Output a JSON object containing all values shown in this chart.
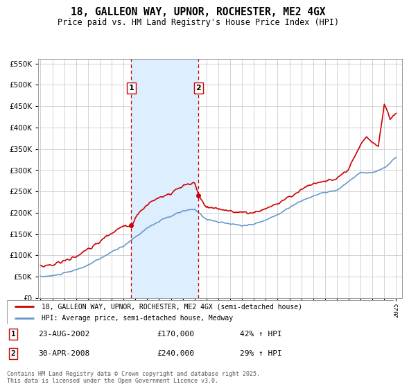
{
  "title": "18, GALLEON WAY, UPNOR, ROCHESTER, ME2 4GX",
  "subtitle": "Price paid vs. HM Land Registry's House Price Index (HPI)",
  "title_fontsize": 10.5,
  "subtitle_fontsize": 8.5,
  "legend_line1": "18, GALLEON WAY, UPNOR, ROCHESTER, ME2 4GX (semi-detached house)",
  "legend_line2": "HPI: Average price, semi-detached house, Medway",
  "annotation1_label": "1",
  "annotation1_date": "23-AUG-2002",
  "annotation1_price": "£170,000",
  "annotation1_hpi": "42% ↑ HPI",
  "annotation2_label": "2",
  "annotation2_date": "30-APR-2008",
  "annotation2_price": "£240,000",
  "annotation2_hpi": "29% ↑ HPI",
  "footer": "Contains HM Land Registry data © Crown copyright and database right 2025.\nThis data is licensed under the Open Government Licence v3.0.",
  "red_color": "#cc0000",
  "blue_color": "#6699cc",
  "shade_color": "#ddeeff",
  "purchase1_year": 2002.65,
  "purchase1_price": 170000,
  "purchase2_year": 2008.33,
  "purchase2_price": 240000,
  "ylim": [
    0,
    560000
  ],
  "xlim": [
    1994.8,
    2025.5
  ],
  "yticks": [
    0,
    50000,
    100000,
    150000,
    200000,
    250000,
    300000,
    350000,
    400000,
    450000,
    500000,
    550000
  ],
  "background_color": "#ffffff",
  "grid_color": "#cccccc"
}
